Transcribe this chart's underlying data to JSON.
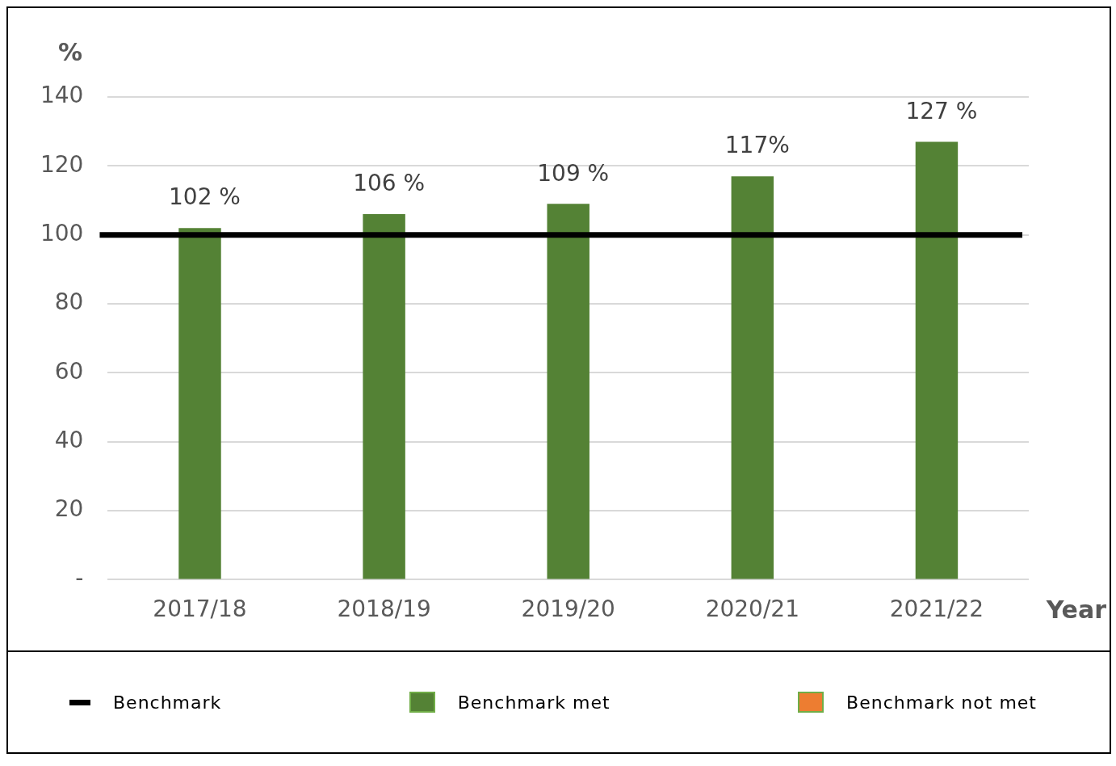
{
  "chart_data": {
    "type": "bar",
    "ylabel": "%",
    "xlabel": "Year",
    "categories": [
      "2017/18",
      "2018/19",
      "2019/20",
      "2020/21",
      "2021/22"
    ],
    "series": [
      {
        "name": "Benchmark met",
        "color": "#548235",
        "values": [
          102,
          106,
          109,
          117,
          127
        ],
        "value_labels": [
          "102 %",
          "106 %",
          "109 %",
          "117%",
          "127 %"
        ]
      },
      {
        "name": "Benchmark not met",
        "color": "#ed7d31",
        "values": [
          null,
          null,
          null,
          null,
          null
        ]
      }
    ],
    "ylim": [
      0,
      140
    ],
    "yticks": [
      {
        "value": 0,
        "label": "-"
      },
      20,
      40,
      60,
      80,
      100,
      120,
      140
    ],
    "ref_lines": [
      {
        "axis": "y",
        "value": 100,
        "label": "Benchmark",
        "color": "#000000"
      }
    ],
    "grid": "y",
    "legend": "bottom"
  }
}
